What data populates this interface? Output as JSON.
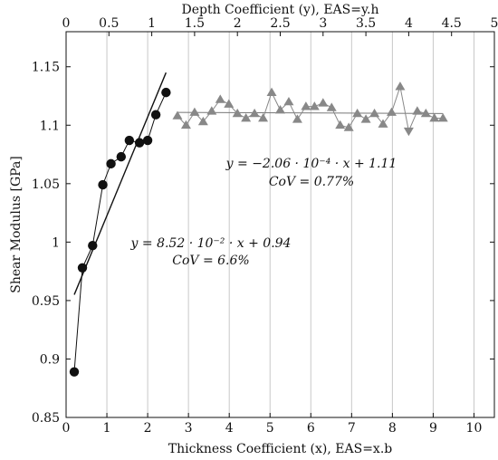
{
  "chart_data": {
    "type": "scatter",
    "title": "",
    "ylabel": "Shear Modulus [GPa]",
    "xlabel_bottom": "Thickness Coefficient (x), EAS=x.b",
    "xlabel_top": "Depth Coefficient (y), EAS=y.h",
    "ylim": [
      0.85,
      1.18
    ],
    "xlim_bottom": [
      0,
      10.5
    ],
    "xlim_top": [
      0,
      5
    ],
    "yticks": [
      0.85,
      0.9,
      0.95,
      1,
      1.05,
      1.1,
      1.15
    ],
    "ytick_labels": [
      "0.85",
      "0.9",
      "0.95",
      "1",
      "1.05",
      "1.1",
      "1.15"
    ],
    "xticks_bottom": [
      0,
      1,
      2,
      3,
      4,
      5,
      6,
      7,
      8,
      9,
      10
    ],
    "xtick_labels_bottom": [
      "0",
      "1",
      "2",
      "3",
      "4",
      "5",
      "6",
      "7",
      "8",
      "9",
      "10"
    ],
    "xticks_top": [
      0,
      0.5,
      1,
      1.5,
      2,
      2.5,
      3,
      3.5,
      4,
      4.5,
      5
    ],
    "xtick_labels_top": [
      "0",
      "0.5",
      "1",
      "1.5",
      "2",
      "2.5",
      "3",
      "3.5",
      "4",
      "4.5",
      "5"
    ],
    "grid": "vertical",
    "series": [
      {
        "marker": "circle",
        "color": "#111111",
        "axis": "bottom",
        "x": [
          0.2,
          0.4,
          0.65,
          0.9,
          1.1,
          1.35,
          1.55,
          1.8,
          2.0,
          2.2,
          2.45
        ],
        "y": [
          0.889,
          0.978,
          0.997,
          1.049,
          1.067,
          1.073,
          1.087,
          1.085,
          1.087,
          1.109,
          1.128
        ],
        "fit": {
          "x": [
            0.2,
            2.45
          ],
          "y": [
            0.955,
            1.145
          ]
        }
      },
      {
        "marker": "triangle",
        "color": "#888888",
        "axis": "top",
        "x": [
          1.3,
          1.4,
          1.5,
          1.6,
          1.7,
          1.8,
          1.9,
          2.0,
          2.1,
          2.2,
          2.3,
          2.4,
          2.5,
          2.6,
          2.7,
          2.8,
          2.9,
          3.0,
          3.1,
          3.2,
          3.3,
          3.4,
          3.5,
          3.6,
          3.7,
          3.8,
          3.9,
          4.0,
          4.1,
          4.2,
          4.3,
          4.4
        ],
        "y": [
          1.108,
          1.1,
          1.111,
          1.103,
          1.112,
          1.122,
          1.118,
          1.11,
          1.106,
          1.11,
          1.106,
          1.128,
          1.113,
          1.12,
          1.105,
          1.116,
          1.116,
          1.119,
          1.115,
          1.1,
          1.098,
          1.11,
          1.105,
          1.11,
          1.101,
          1.111,
          1.133,
          1.095,
          1.112,
          1.11,
          1.106,
          1.106
        ],
        "fit": {
          "x": [
            1.3,
            4.4
          ],
          "y": [
            1.111,
            1.11
          ]
        }
      }
    ],
    "annotations": [
      {
        "line1": "y  =  −2.06 · 10⁻⁴ · x + 1.11",
        "line2": "CoV   =   0.77%"
      },
      {
        "line1": "y  =  8.52 · 10⁻² · x + 0.94",
        "line2": "CoV   =   6.6%"
      }
    ]
  }
}
